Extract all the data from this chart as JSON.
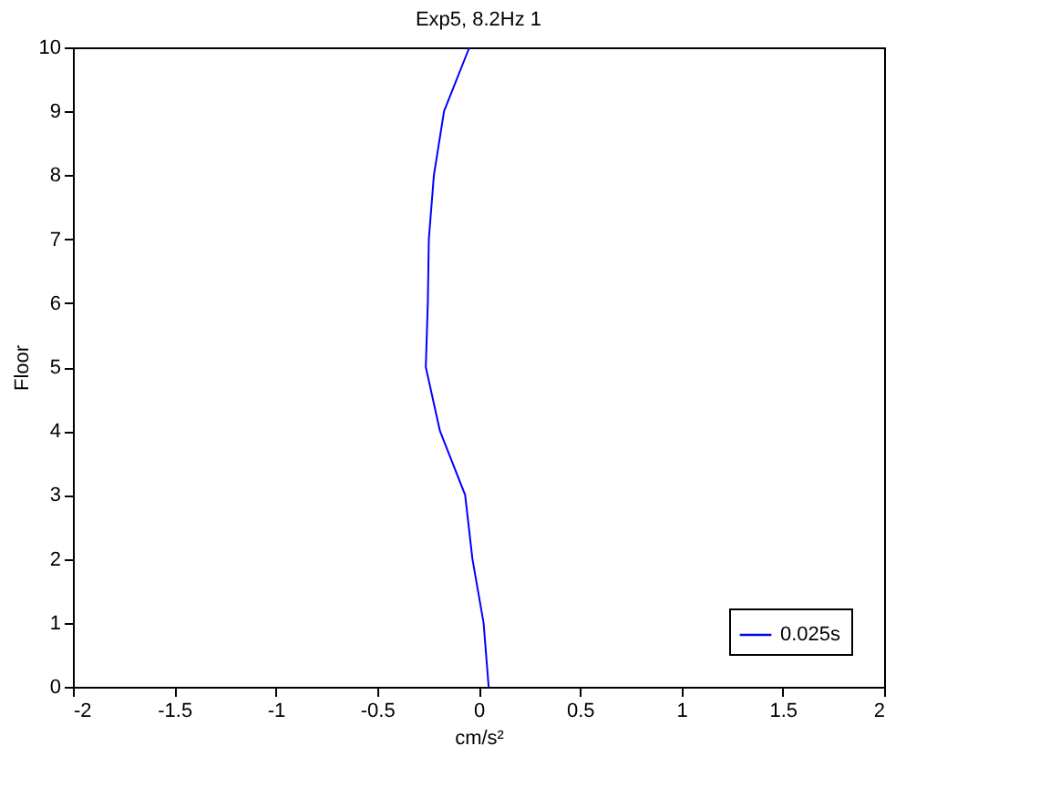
{
  "chart_data": {
    "type": "line",
    "title": "Exp5, 8.2Hz 1",
    "xlabel": "cm/s²",
    "ylabel": "Floor",
    "series": [
      {
        "name": "0.025s",
        "color": "#0000ff",
        "x": [
          0.05,
          0.025,
          -0.03,
          -0.066,
          -0.19,
          -0.26,
          -0.25,
          -0.245,
          -0.22,
          -0.17,
          -0.045
        ],
        "values": [
          0,
          1,
          2,
          3,
          4,
          5,
          6,
          7,
          8,
          9,
          10
        ]
      }
    ],
    "xlim": [
      -2,
      2
    ],
    "xticks": [
      -2,
      -1.5,
      -1,
      -0.5,
      0,
      0.5,
      1,
      1.5,
      2
    ],
    "ylim": [
      0,
      10
    ],
    "yticks": [
      0,
      1,
      2,
      3,
      4,
      5,
      6,
      7,
      8,
      9,
      10
    ],
    "grid": false,
    "legend": "bottom right",
    "marker": "none",
    "line_style": "solid"
  }
}
